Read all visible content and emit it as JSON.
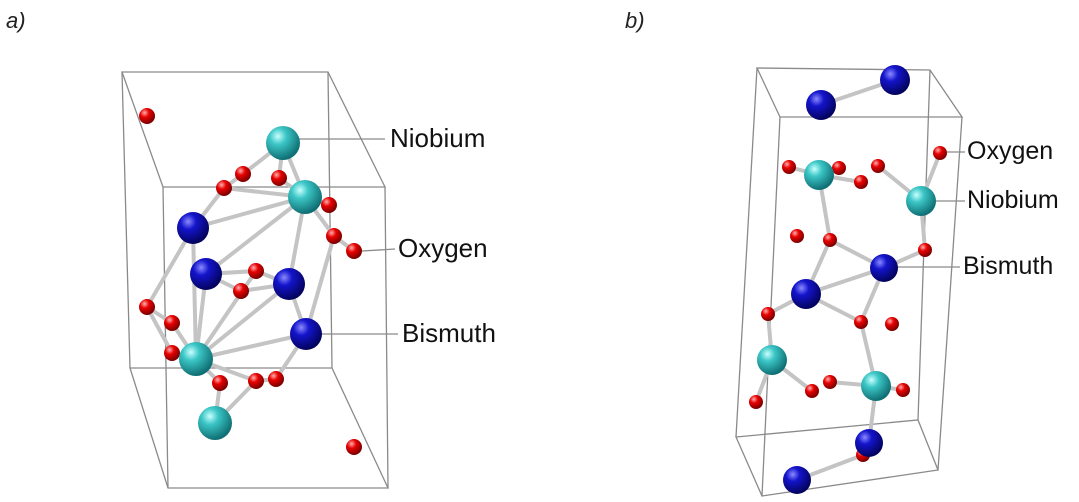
{
  "panels": {
    "a": {
      "label": "a)",
      "legend": {
        "niobium": "Niobium",
        "oxygen": "Oxygen",
        "bismuth": "Bismuth"
      }
    },
    "b": {
      "label": "b)",
      "legend": {
        "oxygen": "Oxygen",
        "niobium": "Niobium",
        "bismuth": "Bismuth"
      }
    }
  },
  "colors": {
    "niobium": "#2fb7b7",
    "oxygen": "#e00000",
    "bismuth": "#0a0ab8",
    "bond": "#c4c4c4",
    "cell": "#8a8a8a"
  }
}
